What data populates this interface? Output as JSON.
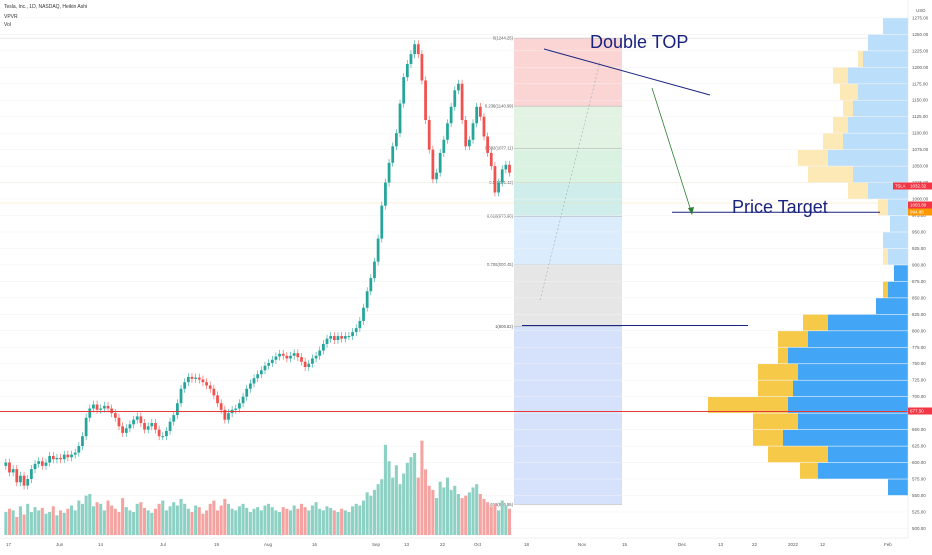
{
  "header": {
    "symbol_line": "Tesla, Inc., 1D, NASDAQ, Heikin Ashi",
    "indicator_1": "VPVR",
    "indicator_2": "Vol"
  },
  "annotations": {
    "pattern_label": "Double TOP",
    "target_label": "Price Target"
  },
  "chart_data": {
    "type": "candlestick",
    "currency": "USD",
    "yticks": [
      500,
      525,
      550,
      575,
      600,
      625,
      650,
      675,
      700,
      725,
      750,
      775,
      800,
      825,
      850,
      875,
      900,
      925,
      950,
      975,
      1000,
      1025,
      1050,
      1075,
      1100,
      1125,
      1150,
      1175,
      1200,
      1225,
      1250,
      1275
    ],
    "ylim": [
      490,
      1290
    ],
    "xticks": [
      "17",
      "Jun",
      "14",
      "Jul",
      "19",
      "Aug",
      "16",
      "Sep",
      "13",
      "22",
      "Oct",
      "18",
      "Nov",
      "15",
      "Dec",
      "13",
      "22",
      "2022",
      "12",
      "Feb"
    ],
    "fib_levels": [
      {
        "ratio": "0",
        "price": 1244.25,
        "label": "0(1244.25)"
      },
      {
        "ratio": "0.236",
        "price": 1140.99,
        "label": "0.236(1140.99)"
      },
      {
        "ratio": "0.382",
        "price": 1077.11,
        "label": "0.382(1077.11)"
      },
      {
        "ratio": "0.5",
        "price": 1025.42,
        "label": "0.5(1025.42)"
      },
      {
        "ratio": "0.618",
        "price": 973.9,
        "label": "0.618(973.90)"
      },
      {
        "ratio": "0.786",
        "price": 900.45,
        "label": "0.786(900.45)"
      },
      {
        "ratio": "1",
        "price": 806.82,
        "label": "1(806.82)"
      },
      {
        "ratio": "1.618",
        "price": 536.55,
        "label": "1.618(536.55)"
      }
    ],
    "price_tags": [
      {
        "label": "TSLA",
        "value": "1032.32",
        "color": "#f23645"
      },
      {
        "label": "",
        "value": "1003.80",
        "color": "#f23645"
      },
      {
        "label": "",
        "value": "994.88",
        "color": "#ff9800"
      },
      {
        "label": "",
        "value": "677.50",
        "color": "#f23645"
      }
    ],
    "horizontal_lines": [
      {
        "price": 677.5,
        "color": "#e53935"
      },
      {
        "price": 980,
        "color": "#1a237e"
      },
      {
        "price": 808,
        "color": "#1a237e"
      }
    ],
    "candles": [
      [
        595,
        600
      ],
      [
        600,
        585
      ],
      [
        585,
        590
      ],
      [
        590,
        570
      ],
      [
        570,
        580
      ],
      [
        580,
        565
      ],
      [
        565,
        575
      ],
      [
        575,
        590
      ],
      [
        590,
        598
      ],
      [
        598,
        602
      ],
      [
        602,
        595
      ],
      [
        595,
        600
      ],
      [
        600,
        610
      ],
      [
        610,
        605
      ],
      [
        605,
        607
      ],
      [
        607,
        605
      ],
      [
        605,
        612
      ],
      [
        612,
        608
      ],
      [
        608,
        612
      ],
      [
        612,
        615
      ],
      [
        615,
        625
      ],
      [
        625,
        640
      ],
      [
        640,
        668
      ],
      [
        668,
        682
      ],
      [
        682,
        688
      ],
      [
        688,
        680
      ],
      [
        680,
        682
      ],
      [
        682,
        686
      ],
      [
        686,
        682
      ],
      [
        682,
        675
      ],
      [
        675,
        668
      ],
      [
        668,
        655
      ],
      [
        655,
        645
      ],
      [
        645,
        652
      ],
      [
        652,
        658
      ],
      [
        658,
        665
      ],
      [
        665,
        670
      ],
      [
        670,
        660
      ],
      [
        660,
        650
      ],
      [
        650,
        655
      ],
      [
        655,
        660
      ],
      [
        660,
        650
      ],
      [
        650,
        640
      ],
      [
        640,
        640
      ],
      [
        640,
        648
      ],
      [
        648,
        662
      ],
      [
        662,
        672
      ],
      [
        672,
        690
      ],
      [
        690,
        712
      ],
      [
        712,
        722
      ],
      [
        722,
        730
      ],
      [
        730,
        727
      ],
      [
        727,
        729
      ],
      [
        729,
        726
      ],
      [
        726,
        722
      ],
      [
        722,
        717
      ],
      [
        717,
        712
      ],
      [
        712,
        702
      ],
      [
        702,
        690
      ],
      [
        690,
        680
      ],
      [
        680,
        665
      ],
      [
        665,
        675
      ],
      [
        675,
        680
      ],
      [
        680,
        682
      ],
      [
        682,
        690
      ],
      [
        690,
        700
      ],
      [
        700,
        712
      ],
      [
        712,
        720
      ],
      [
        720,
        728
      ],
      [
        728,
        734
      ],
      [
        734,
        740
      ],
      [
        740,
        747
      ],
      [
        747,
        751
      ],
      [
        751,
        756
      ],
      [
        756,
        761
      ],
      [
        761,
        765
      ],
      [
        765,
        762
      ],
      [
        762,
        758
      ],
      [
        758,
        762
      ],
      [
        762,
        766
      ],
      [
        766,
        760
      ],
      [
        760,
        753
      ],
      [
        753,
        745
      ],
      [
        745,
        750
      ],
      [
        750,
        758
      ],
      [
        758,
        762
      ],
      [
        762,
        770
      ],
      [
        770,
        780
      ],
      [
        780,
        788
      ],
      [
        788,
        792
      ],
      [
        792,
        786
      ],
      [
        786,
        792
      ],
      [
        792,
        788
      ],
      [
        788,
        792
      ],
      [
        792,
        792
      ],
      [
        792,
        798
      ],
      [
        798,
        804
      ],
      [
        804,
        815
      ],
      [
        815,
        835
      ],
      [
        835,
        860
      ],
      [
        860,
        880
      ],
      [
        880,
        905
      ],
      [
        905,
        940
      ],
      [
        940,
        990
      ],
      [
        990,
        1025
      ],
      [
        1025,
        1055
      ],
      [
        1055,
        1080
      ],
      [
        1080,
        1100
      ],
      [
        1100,
        1145
      ],
      [
        1145,
        1185
      ],
      [
        1185,
        1205
      ],
      [
        1205,
        1220
      ],
      [
        1220,
        1235
      ],
      [
        1235,
        1220
      ],
      [
        1220,
        1180
      ],
      [
        1180,
        1120
      ],
      [
        1120,
        1075
      ],
      [
        1075,
        1030
      ],
      [
        1030,
        1040
      ],
      [
        1040,
        1070
      ],
      [
        1070,
        1090
      ],
      [
        1090,
        1115
      ],
      [
        1115,
        1140
      ],
      [
        1140,
        1165
      ],
      [
        1165,
        1175
      ],
      [
        1175,
        1120
      ],
      [
        1120,
        1080
      ],
      [
        1080,
        1090
      ],
      [
        1090,
        1115
      ],
      [
        1115,
        1140
      ],
      [
        1140,
        1125
      ],
      [
        1125,
        1095
      ],
      [
        1095,
        1070
      ],
      [
        1070,
        1050
      ],
      [
        1050,
        1010
      ],
      [
        1010,
        1025
      ],
      [
        1025,
        1045
      ],
      [
        1045,
        1052
      ],
      [
        1052,
        1040
      ]
    ],
    "volumes": [
      28,
      32,
      30,
      22,
      35,
      25,
      38,
      28,
      34,
      30,
      33,
      26,
      28,
      35,
      24,
      30,
      27,
      32,
      36,
      30,
      42,
      38,
      48,
      50,
      35,
      40,
      38,
      30,
      42,
      36,
      32,
      28,
      45,
      34,
      30,
      28,
      38,
      40,
      33,
      30,
      27,
      32,
      38,
      42,
      30,
      35,
      40,
      36,
      44,
      38,
      32,
      28,
      36,
      34,
      26,
      30,
      38,
      42,
      30,
      36,
      44,
      38,
      32,
      30,
      35,
      38,
      33,
      28,
      32,
      34,
      30,
      36,
      38,
      34,
      30,
      28,
      34,
      32,
      30,
      36,
      32,
      38,
      34,
      30,
      36,
      40,
      32,
      30,
      35,
      33,
      30,
      28,
      32,
      30,
      28,
      35,
      38,
      36,
      42,
      52,
      48,
      55,
      62,
      68,
      110,
      90,
      70,
      85,
      62,
      75,
      88,
      95,
      100,
      70,
      115,
      80,
      60,
      55,
      45,
      65,
      58,
      70,
      55,
      60,
      50,
      45,
      48,
      52,
      58,
      62,
      50,
      44,
      40,
      35,
      38,
      30,
      42,
      36,
      32
    ],
    "volume_profile": [
      {
        "price": 562,
        "up": 0,
        "down": 20
      },
      {
        "price": 587,
        "up": 18,
        "down": 90
      },
      {
        "price": 612,
        "up": 60,
        "down": 80
      },
      {
        "price": 637,
        "up": 30,
        "down": 125
      },
      {
        "price": 662,
        "up": 45,
        "down": 110
      },
      {
        "price": 687,
        "up": 80,
        "down": 120
      },
      {
        "price": 712,
        "up": 35,
        "down": 115
      },
      {
        "price": 737,
        "up": 40,
        "down": 110
      },
      {
        "price": 762,
        "up": 10,
        "down": 120
      },
      {
        "price": 787,
        "up": 30,
        "down": 100
      },
      {
        "price": 812,
        "up": 25,
        "down": 80
      },
      {
        "price": 837,
        "up": 0,
        "down": 32
      },
      {
        "price": 862,
        "up": 5,
        "down": 20
      },
      {
        "price": 887,
        "up": 0,
        "down": 14
      },
      {
        "price": 912,
        "up": 5,
        "down": 20
      },
      {
        "price": 937,
        "up": 0,
        "down": 25
      },
      {
        "price": 962,
        "up": 0,
        "down": 18
      },
      {
        "price": 987,
        "up": 10,
        "down": 20
      },
      {
        "price": 1012,
        "up": 20,
        "down": 40
      },
      {
        "price": 1037,
        "up": 45,
        "down": 55
      },
      {
        "price": 1062,
        "up": 30,
        "down": 80
      },
      {
        "price": 1087,
        "up": 20,
        "down": 65
      },
      {
        "price": 1112,
        "up": 15,
        "down": 60
      },
      {
        "price": 1137,
        "up": 10,
        "down": 55
      },
      {
        "price": 1162,
        "up": 18,
        "down": 50
      },
      {
        "price": 1187,
        "up": 15,
        "down": 60
      },
      {
        "price": 1212,
        "up": 5,
        "down": 45
      },
      {
        "price": 1237,
        "up": 0,
        "down": 40
      },
      {
        "price": 1262,
        "up": 0,
        "down": 25
      }
    ],
    "colors": {
      "up": "#26a69a",
      "down": "#ef5350",
      "vol_up": "#8dd0c4",
      "vol_down": "#f5a3a1",
      "vp_up": "#42a5f5",
      "vp_down": "#f7c948",
      "vp_up_light": "#bbdefb",
      "vp_down_light": "#fde9b6",
      "annotation": "#1a237e"
    }
  }
}
